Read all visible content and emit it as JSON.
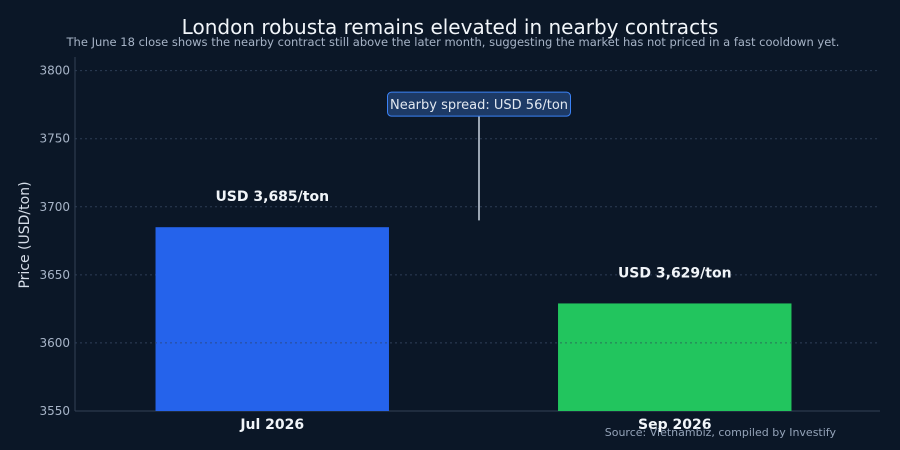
{
  "chart_data": {
    "type": "bar",
    "title": "London robusta remains elevated in nearby contracts",
    "subtitle": "The June 18 close shows the nearby contract still above the later month, suggesting the market has not priced in a fast cooldown yet.",
    "categories": [
      "Jul 2026",
      "Sep 2026"
    ],
    "values": [
      3685,
      3629
    ],
    "value_labels": [
      "USD 3,685/ton",
      "USD 3,629/ton"
    ],
    "colors": [
      "#2563eb",
      "#22c55e"
    ],
    "xlabel": "",
    "ylabel": "Price (USD/ton)",
    "ylim": [
      3550,
      3810
    ],
    "yticks": [
      3550,
      3600,
      3650,
      3700,
      3750,
      3800
    ],
    "grid": true,
    "annotation": {
      "text": "Nearby spread: USD 56/ton",
      "line_from": 3768,
      "line_to": 3690
    },
    "source": "Source: Vietnambiz, compiled by Investify"
  }
}
